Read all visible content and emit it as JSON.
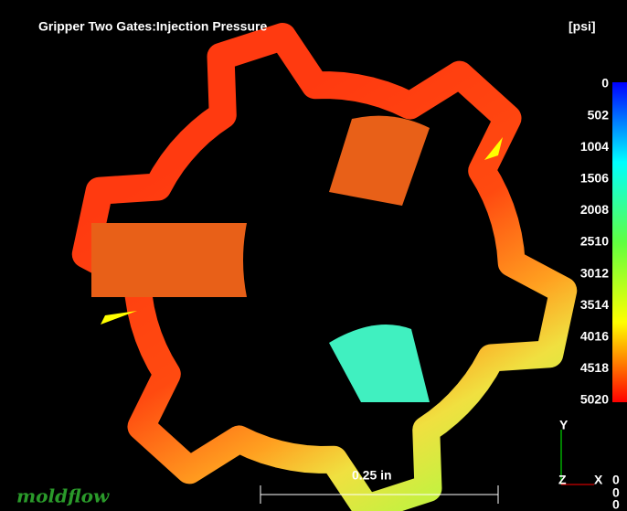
{
  "header": {
    "title": "Gripper Two Gates:Injection Pressure",
    "unit": "[psi]"
  },
  "legend": {
    "labels": [
      "0",
      "502",
      "1004",
      "1506",
      "2008",
      "2510",
      "3012",
      "3514",
      "4016",
      "4518",
      "5020"
    ]
  },
  "triad": {
    "y": "Y",
    "z": "Z",
    "x": "X",
    "values": [
      "0",
      "0",
      "0"
    ]
  },
  "scale_bar": {
    "label": "0.25 in"
  },
  "logo": "moldflow"
}
